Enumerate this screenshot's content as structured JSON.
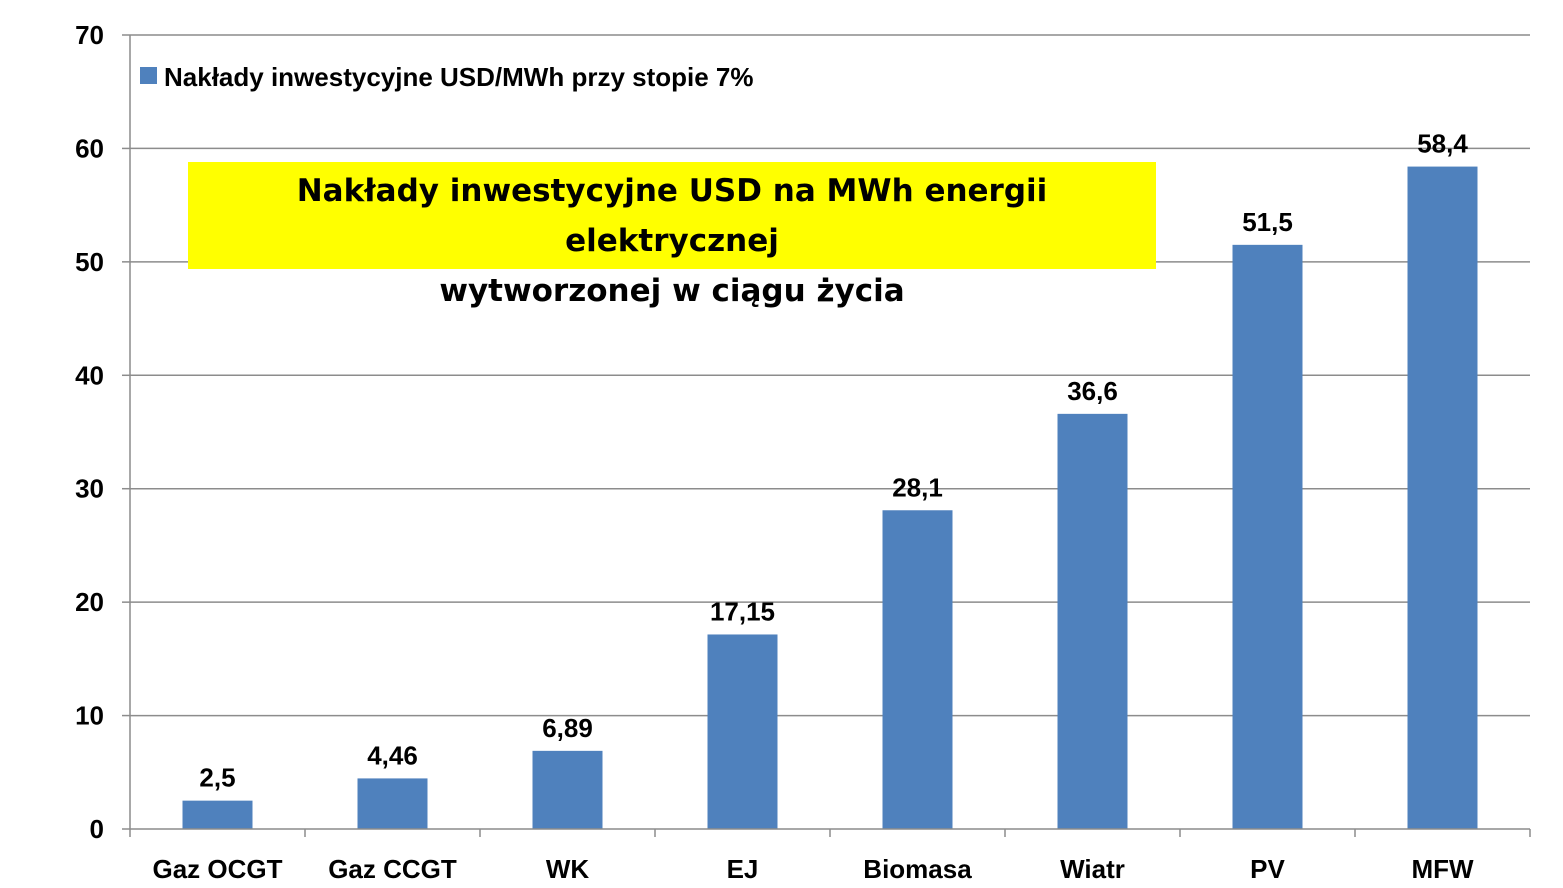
{
  "chart_data": {
    "type": "bar",
    "title": "Nakłady inwestycyjne USD na MWh energii elektrycznej wytworzonej w ciągu życia",
    "title_lines": [
      "Nakłady inwestycyjne USD na MWh energii elektrycznej",
      "wytworzonej w ciągu życia"
    ],
    "categories": [
      "Gaz OCGT",
      "Gaz CCGT",
      "WK",
      "EJ",
      "Biomasa",
      "Wiatr",
      "PV",
      "MFW"
    ],
    "series": [
      {
        "name": "Nakłady inwestycyjne USD/MWh przy stopie 7%",
        "values": [
          2.5,
          4.46,
          6.89,
          17.15,
          28.1,
          36.6,
          51.5,
          58.4
        ],
        "labels": [
          "2,5",
          "4,46",
          "6,89",
          "17,15",
          "28,1",
          "36,6",
          "51,5",
          "58,4"
        ],
        "color": "#4f81bd"
      }
    ],
    "ylim": [
      0,
      70
    ],
    "yticks": [
      0,
      10,
      20,
      30,
      40,
      50,
      60,
      70
    ],
    "grid": true,
    "legend_position": "top-left",
    "title_background": "#ffff00"
  }
}
